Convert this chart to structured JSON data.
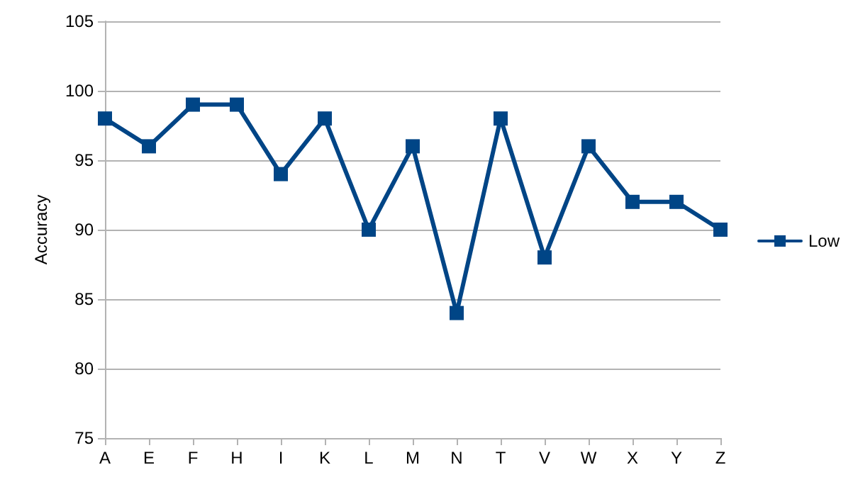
{
  "chart_data": {
    "type": "line",
    "ylabel": "Accuracy",
    "categories": [
      "A",
      "E",
      "F",
      "H",
      "I",
      "K",
      "L",
      "M",
      "N",
      "T",
      "V",
      "W",
      "X",
      "Y",
      "Z"
    ],
    "series": [
      {
        "name": "Low",
        "color": "#004586",
        "values": [
          98,
          96,
          99,
          99,
          94,
          98,
          90,
          96,
          84,
          98,
          88,
          96,
          92,
          92,
          90
        ]
      }
    ],
    "ylim": [
      75,
      105
    ],
    "yticks": [
      75,
      80,
      85,
      90,
      95,
      100,
      105
    ],
    "grid": "y",
    "legend": "right",
    "marker": "square",
    "line_style": "solid"
  }
}
